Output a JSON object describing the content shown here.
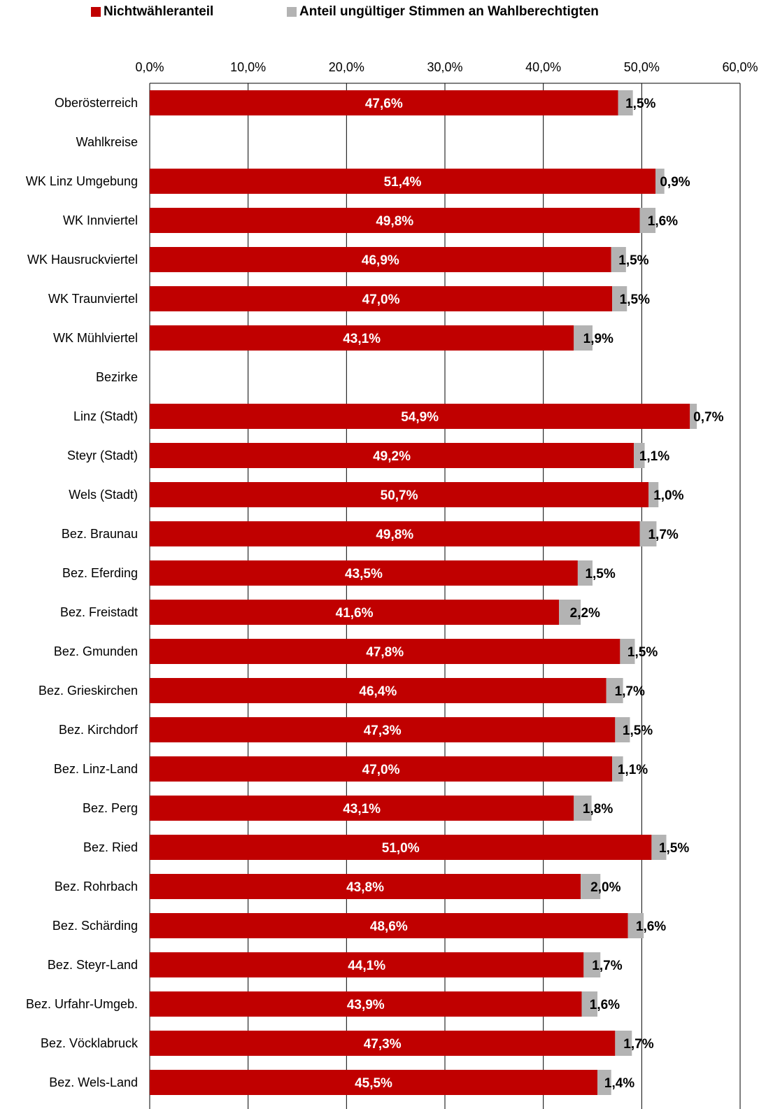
{
  "colors": {
    "nonvoter": "#c00000",
    "invalid": "#b3b3b3",
    "grid": "#000000"
  },
  "chart_data": {
    "type": "bar",
    "orientation": "horizontal",
    "stacked": true,
    "xlim": [
      0,
      60
    ],
    "x_ticks": [
      "0,0%",
      "10,0%",
      "20,0%",
      "30,0%",
      "40,0%",
      "50,0%",
      "60,0%"
    ],
    "grid": true,
    "legend_position": "top",
    "categories": [
      "Oberösterreich",
      "Wahlkreise",
      "WK Linz Umgebung",
      "WK Innviertel",
      "WK Hausruckviertel",
      "WK Traunviertel",
      "WK Mühlviertel",
      "Bezirke",
      "Linz (Stadt)",
      "Steyr (Stadt)",
      "Wels (Stadt)",
      "Bez. Braunau",
      "Bez. Eferding",
      "Bez. Freistadt",
      "Bez. Gmunden",
      "Bez. Grieskirchen",
      "Bez. Kirchdorf",
      "Bez. Linz-Land",
      "Bez. Perg",
      "Bez. Ried",
      "Bez. Rohrbach",
      "Bez. Schärding",
      "Bez. Steyr-Land",
      "Bez. Urfahr-Umgeb.",
      "Bez. Vöcklabruck",
      "Bez. Wels-Land"
    ],
    "series": [
      {
        "name": "Nichtwähleranteil",
        "values": [
          47.6,
          null,
          51.4,
          49.8,
          46.9,
          47.0,
          43.1,
          null,
          54.9,
          49.2,
          50.7,
          49.8,
          43.5,
          41.6,
          47.8,
          46.4,
          47.3,
          47.0,
          43.1,
          51.0,
          43.8,
          48.6,
          44.1,
          43.9,
          47.3,
          45.5
        ],
        "labels": [
          "47,6%",
          "",
          "51,4%",
          "49,8%",
          "46,9%",
          "47,0%",
          "43,1%",
          "",
          "54,9%",
          "49,2%",
          "50,7%",
          "49,8%",
          "43,5%",
          "41,6%",
          "47,8%",
          "46,4%",
          "47,3%",
          "47,0%",
          "43,1%",
          "51,0%",
          "43,8%",
          "48,6%",
          "44,1%",
          "43,9%",
          "47,3%",
          "45,5%"
        ]
      },
      {
        "name": "Anteil ungültiger Stimmen an Wahlberechtigten",
        "values": [
          1.5,
          null,
          0.9,
          1.6,
          1.5,
          1.5,
          1.9,
          null,
          0.7,
          1.1,
          1.0,
          1.7,
          1.5,
          2.2,
          1.5,
          1.7,
          1.5,
          1.1,
          1.8,
          1.5,
          2.0,
          1.6,
          1.7,
          1.6,
          1.7,
          1.4
        ],
        "labels": [
          "1,5%",
          "",
          "0,9%",
          "1,6%",
          "1,5%",
          "1,5%",
          "1,9%",
          "",
          "0,7%",
          "1,1%",
          "1,0%",
          "1,7%",
          "1,5%",
          "2,2%",
          "1,5%",
          "1,7%",
          "1,5%",
          "1,1%",
          "1,8%",
          "1,5%",
          "2,0%",
          "1,6%",
          "1,7%",
          "1,6%",
          "1,7%",
          "1,4%"
        ]
      }
    ]
  }
}
